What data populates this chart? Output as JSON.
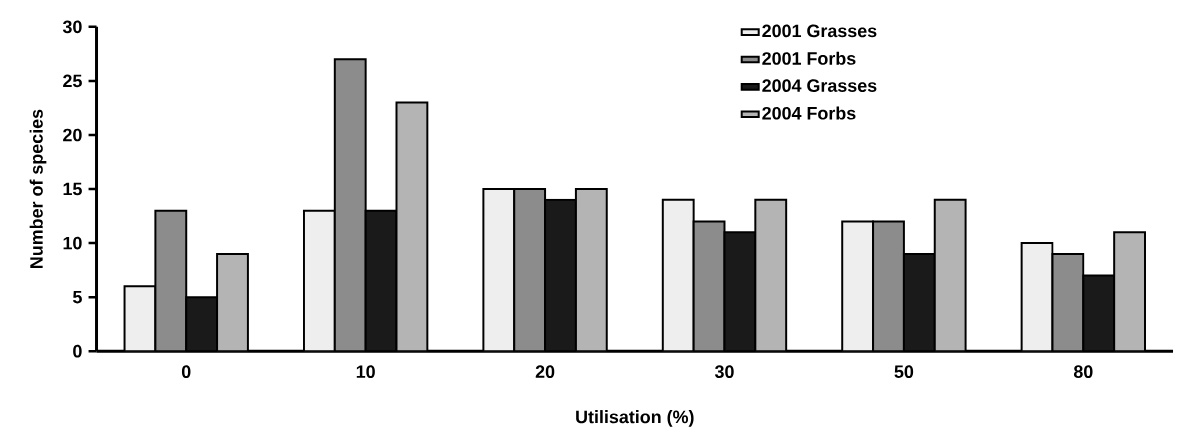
{
  "chart_data": {
    "type": "bar",
    "xlabel": "Utilisation (%)",
    "ylabel": "Number of species",
    "categories": [
      "0",
      "10",
      "20",
      "30",
      "50",
      "80"
    ],
    "series": [
      {
        "name": "2001 Grasses",
        "color": "#eeeeee",
        "values": [
          6,
          13,
          15,
          14,
          12,
          10
        ]
      },
      {
        "name": "2001 Forbs",
        "color": "#8c8c8c",
        "values": [
          13,
          27,
          15,
          12,
          12,
          9
        ]
      },
      {
        "name": "2004 Grasses",
        "color": "#1a1a1a",
        "values": [
          5,
          13,
          14,
          11,
          9,
          7
        ]
      },
      {
        "name": "2004 Forbs",
        "color": "#b4b4b4",
        "values": [
          9,
          23,
          15,
          14,
          14,
          11
        ]
      }
    ],
    "ylim": [
      0,
      30
    ],
    "yticks": [
      0,
      5,
      10,
      15,
      20,
      25,
      30
    ],
    "grid": false,
    "legend": "top right"
  }
}
